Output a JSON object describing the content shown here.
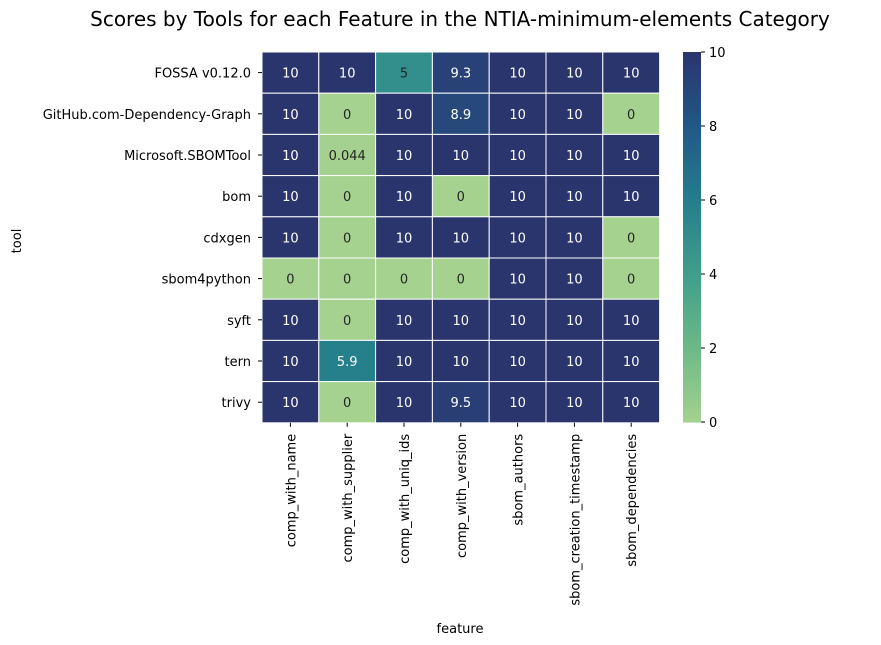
{
  "chart_data": {
    "type": "heatmap",
    "title": "Scores by Tools for each Feature in the NTIA-minimum-elements Category",
    "xlabel": "feature",
    "ylabel": "tool",
    "x_categories": [
      "comp_with_name",
      "comp_with_supplier",
      "comp_with_uniq_ids",
      "comp_with_version",
      "sbom_authors",
      "sbom_creation_timestamp",
      "sbom_dependencies"
    ],
    "y_categories": [
      "FOSSA v0.12.0",
      "GitHub.com-Dependency-Graph",
      "Microsoft.SBOMTool",
      "bom",
      "cdxgen",
      "sbom4python",
      "syft",
      "tern",
      "trivy"
    ],
    "values": [
      [
        10,
        10,
        5,
        9.3,
        10,
        10,
        10
      ],
      [
        10,
        0,
        10,
        8.9,
        10,
        10,
        0
      ],
      [
        10,
        0.044,
        10,
        10,
        10,
        10,
        10
      ],
      [
        10,
        0,
        10,
        0,
        10,
        10,
        10
      ],
      [
        10,
        0,
        10,
        10,
        10,
        10,
        0
      ],
      [
        0,
        0,
        0,
        0,
        10,
        10,
        0
      ],
      [
        10,
        0,
        10,
        10,
        10,
        10,
        10
      ],
      [
        10,
        5.9,
        10,
        10,
        10,
        10,
        10
      ],
      [
        10,
        0,
        10,
        9.5,
        10,
        10,
        10
      ]
    ],
    "value_labels": [
      [
        "10",
        "10",
        "5",
        "9.3",
        "10",
        "10",
        "10"
      ],
      [
        "10",
        "0",
        "10",
        "8.9",
        "10",
        "10",
        "0"
      ],
      [
        "10",
        "0.044",
        "10",
        "10",
        "10",
        "10",
        "10"
      ],
      [
        "10",
        "0",
        "10",
        "0",
        "10",
        "10",
        "10"
      ],
      [
        "10",
        "0",
        "10",
        "10",
        "10",
        "10",
        "0"
      ],
      [
        "0",
        "0",
        "0",
        "0",
        "10",
        "10",
        "0"
      ],
      [
        "10",
        "0",
        "10",
        "10",
        "10",
        "10",
        "10"
      ],
      [
        "10",
        "5.9",
        "10",
        "10",
        "10",
        "10",
        "10"
      ],
      [
        "10",
        "0",
        "10",
        "9.5",
        "10",
        "10",
        "10"
      ]
    ],
    "colormap": "crest",
    "color_range": [
      0,
      10
    ],
    "colorbar_ticks": [
      0,
      2,
      4,
      6,
      8,
      10
    ],
    "colorbar_tick_labels": [
      "0",
      "2",
      "4",
      "6",
      "8",
      "10"
    ],
    "colorbar_position": "right",
    "grid": false
  }
}
